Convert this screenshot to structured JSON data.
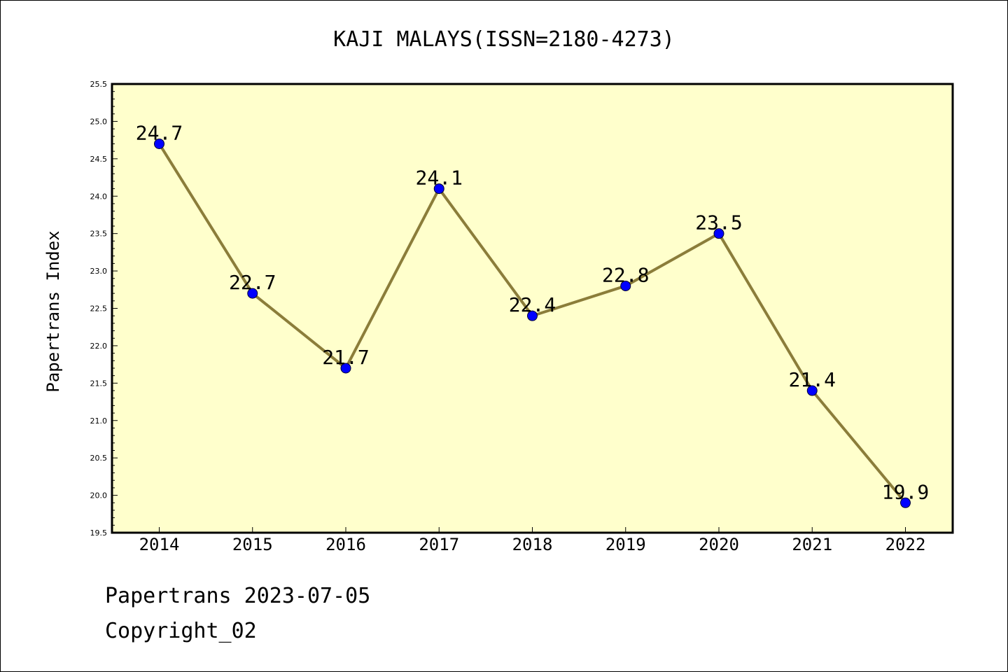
{
  "chart_data": {
    "type": "line",
    "title": "KAJI MALAYS(ISSN=2180-4273)",
    "xlabel": "",
    "ylabel": "Papertrans Index",
    "categories": [
      "2014",
      "2015",
      "2016",
      "2017",
      "2018",
      "2019",
      "2020",
      "2021",
      "2022"
    ],
    "series": [
      {
        "values": [
          24.7,
          22.7,
          21.7,
          24.1,
          22.4,
          22.8,
          23.5,
          21.4,
          19.9
        ],
        "data_labels": [
          "24.7",
          "22.7",
          "21.7",
          "24.1",
          "22.4",
          "22.8",
          "23.5",
          "21.4",
          "19.9"
        ]
      }
    ],
    "ylim": [
      19.5,
      25.5
    ],
    "yticks": [
      "19.5",
      "20.0",
      "20.5",
      "21.0",
      "21.5",
      "22.0",
      "22.5",
      "23.0",
      "23.5",
      "24.0",
      "24.5",
      "25.0",
      "25.5"
    ],
    "grid": false,
    "legend": "none",
    "colors": {
      "plot_background": "#ffffcc",
      "line": "#8b7d3a",
      "marker": "#0000ff",
      "axes": "#000000"
    }
  },
  "footer": {
    "line1": "Papertrans 2023-07-05",
    "line2": "Copyright_02"
  }
}
